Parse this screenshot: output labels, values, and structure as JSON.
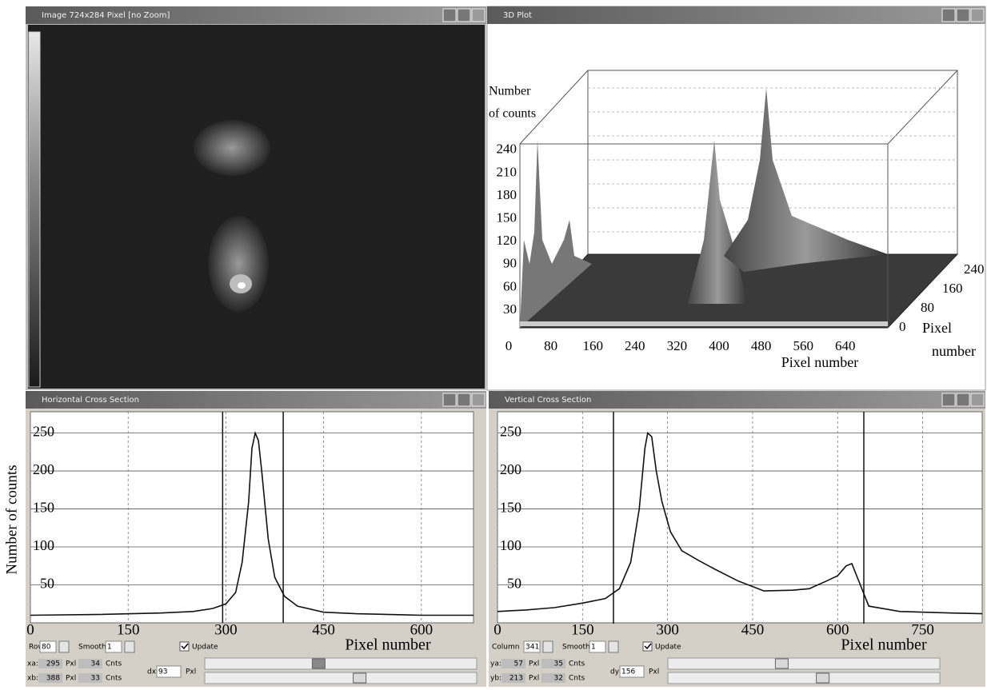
{
  "windows": [
    {
      "title": "Image 724x284 Pixel [no Zoom]"
    },
    {
      "title": "3D Plot",
      "z_label": [
        "Number",
        "of counts"
      ],
      "z_ticks": [
        30,
        60,
        90,
        120,
        150,
        180,
        210,
        240
      ],
      "x_ticks": [
        0,
        80,
        160,
        240,
        320,
        400,
        480,
        560,
        640
      ],
      "x_label": "Pixel number",
      "y_ticks": [
        0,
        80,
        160,
        240
      ],
      "y_label": [
        "Pixel",
        "number"
      ]
    },
    {
      "title": "Horizontal Cross Section",
      "controls": {
        "row_label": "Row",
        "row": 80,
        "smooth_label": "Smooth",
        "smooth": 1,
        "update": "Update",
        "a_label": "xa:",
        "a": 295,
        "a_counts": 34,
        "b_label": "xb:",
        "b": 388,
        "b_counts": 33,
        "d_label": "dx",
        "d": 93,
        "pixel_unit": "Pxl",
        "count_unit": "Cnts"
      }
    },
    {
      "title": "Vertical Cross Section",
      "controls": {
        "row_label": "Column",
        "row": 341,
        "smooth_label": "Smooth",
        "smooth": 1,
        "update": "Update",
        "a_label": "ya:",
        "a": 57,
        "a_counts": 35,
        "b_label": "yb:",
        "b": 213,
        "b_counts": 32,
        "d_label": "dy",
        "d": 156,
        "pixel_unit": "Pxl",
        "count_unit": "Cnts"
      }
    }
  ],
  "chart_data": [
    {
      "type": "line",
      "x_label": "Pixel number",
      "y_label": "Number of counts",
      "color": "#111111",
      "grid": true,
      "x": [
        0,
        100,
        200,
        250,
        280,
        300,
        315,
        325,
        335,
        340,
        345,
        350,
        355,
        365,
        375,
        390,
        410,
        450,
        500,
        600,
        680
      ],
      "values": [
        10,
        11,
        13,
        15,
        19,
        25,
        40,
        80,
        160,
        230,
        250,
        240,
        200,
        110,
        60,
        35,
        22,
        14,
        12,
        10,
        10
      ],
      "xlim": [
        0,
        680
      ],
      "ylim": [
        0,
        278
      ],
      "xticks": [
        0,
        150,
        300,
        450,
        600
      ],
      "yticks": [
        50,
        100,
        150,
        200,
        250
      ]
    },
    {
      "type": "line",
      "x_label": "Pixel number",
      "color": "#111111",
      "grid": true,
      "x": [
        0,
        50,
        100,
        150,
        190,
        215,
        235,
        250,
        260,
        265,
        272,
        280,
        290,
        305,
        325,
        355,
        385,
        425,
        470,
        520,
        550,
        580,
        600,
        615,
        625,
        640,
        655,
        710,
        800,
        855
      ],
      "values": [
        15,
        17,
        20,
        26,
        32,
        45,
        80,
        150,
        230,
        250,
        245,
        200,
        160,
        120,
        95,
        82,
        70,
        55,
        42,
        43,
        45,
        55,
        62,
        75,
        78,
        50,
        22,
        15,
        13,
        12
      ],
      "xlim": [
        0,
        855
      ],
      "ylim": [
        0,
        278
      ],
      "xticks": [
        0,
        150,
        300,
        450,
        600,
        750
      ],
      "yticks": [
        50,
        100,
        150,
        200,
        250
      ]
    }
  ]
}
